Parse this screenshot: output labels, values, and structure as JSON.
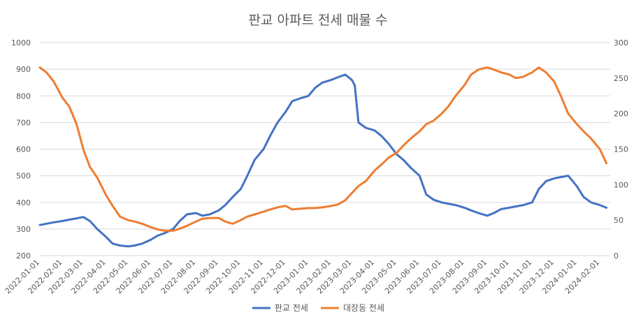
{
  "chart_data": {
    "type": "line",
    "title": "판교 아파트 전세 매물 수",
    "y_left": {
      "min": 200,
      "max": 1000,
      "ticks": [
        200,
        300,
        400,
        500,
        600,
        700,
        800,
        900,
        1000
      ]
    },
    "y_right": {
      "min": 0,
      "max": 300,
      "ticks": [
        0,
        50,
        100,
        150,
        200,
        250,
        300
      ]
    },
    "x_ticks": [
      "2022-01-01",
      "2022-02-01",
      "2022-03-01",
      "2022-04-01",
      "2022-05-01",
      "2022-06-01",
      "2022-07-01",
      "2022-08-01",
      "2022-09-01",
      "2022-10-01",
      "2022-11-01",
      "2022-12-01",
      "2023-01-01",
      "2023-02-01",
      "2023-03-01",
      "2023-04-01",
      "2023-05-01",
      "2023-06-01",
      "2023-07-01",
      "2023-08-01",
      "2023-09-01",
      "2023-10-01",
      "2023-11-01",
      "2023-12-01",
      "2024-01-01",
      "2024-02-01"
    ],
    "grid": true,
    "legend_position": "bottom",
    "series": [
      {
        "name": "판교 전세",
        "axis": "left",
        "color": "#4472C4",
        "x": [
          "2022-01-01",
          "2022-01-10",
          "2022-01-20",
          "2022-02-01",
          "2022-02-10",
          "2022-02-20",
          "2022-03-01",
          "2022-03-10",
          "2022-03-20",
          "2022-04-01",
          "2022-04-10",
          "2022-04-20",
          "2022-05-01",
          "2022-05-10",
          "2022-05-20",
          "2022-06-01",
          "2022-06-10",
          "2022-06-20",
          "2022-07-01",
          "2022-07-10",
          "2022-07-20",
          "2022-08-01",
          "2022-08-10",
          "2022-08-20",
          "2022-09-01",
          "2022-09-10",
          "2022-09-20",
          "2022-10-01",
          "2022-10-10",
          "2022-10-20",
          "2022-11-01",
          "2022-11-10",
          "2022-11-20",
          "2022-12-01",
          "2022-12-10",
          "2022-12-20",
          "2023-01-01",
          "2023-01-10",
          "2023-01-20",
          "2023-02-01",
          "2023-02-10",
          "2023-02-20",
          "2023-03-01",
          "2023-03-05",
          "2023-03-10",
          "2023-03-20",
          "2023-04-01",
          "2023-04-10",
          "2023-04-20",
          "2023-05-01",
          "2023-05-10",
          "2023-05-20",
          "2023-06-01",
          "2023-06-10",
          "2023-06-20",
          "2023-07-01",
          "2023-07-10",
          "2023-07-20",
          "2023-08-01",
          "2023-08-10",
          "2023-08-20",
          "2023-09-01",
          "2023-09-10",
          "2023-09-20",
          "2023-10-01",
          "2023-10-10",
          "2023-10-20",
          "2023-11-01",
          "2023-11-10",
          "2023-11-20",
          "2023-12-01",
          "2023-12-10",
          "2023-12-20",
          "2024-01-01",
          "2024-01-10",
          "2024-01-20",
          "2024-02-01",
          "2024-02-10"
        ],
        "values": [
          315,
          320,
          325,
          330,
          335,
          340,
          345,
          330,
          300,
          270,
          245,
          238,
          235,
          238,
          245,
          260,
          275,
          285,
          300,
          330,
          355,
          360,
          350,
          355,
          370,
          390,
          420,
          450,
          500,
          560,
          600,
          650,
          700,
          740,
          780,
          790,
          800,
          830,
          850,
          860,
          870,
          880,
          860,
          840,
          700,
          680,
          670,
          650,
          620,
          580,
          560,
          530,
          500,
          430,
          410,
          400,
          395,
          390,
          380,
          370,
          360,
          350,
          360,
          375,
          380,
          385,
          390,
          400,
          450,
          480,
          490,
          495,
          500,
          460,
          420,
          400,
          390,
          380
        ]
      },
      {
        "name": "대장동 전세",
        "axis": "right",
        "color": "#ED7D31",
        "x": [
          "2022-01-01",
          "2022-01-10",
          "2022-01-20",
          "2022-02-01",
          "2022-02-10",
          "2022-02-20",
          "2022-03-01",
          "2022-03-10",
          "2022-03-20",
          "2022-04-01",
          "2022-04-10",
          "2022-04-20",
          "2022-05-01",
          "2022-05-10",
          "2022-05-20",
          "2022-06-01",
          "2022-06-10",
          "2022-06-20",
          "2022-07-01",
          "2022-07-10",
          "2022-07-20",
          "2022-08-01",
          "2022-08-10",
          "2022-08-20",
          "2022-09-01",
          "2022-09-10",
          "2022-09-20",
          "2022-10-01",
          "2022-10-10",
          "2022-10-20",
          "2022-11-01",
          "2022-11-10",
          "2022-11-20",
          "2022-12-01",
          "2022-12-10",
          "2022-12-20",
          "2023-01-01",
          "2023-01-10",
          "2023-01-20",
          "2023-02-01",
          "2023-02-10",
          "2023-02-20",
          "2023-03-01",
          "2023-03-10",
          "2023-03-20",
          "2023-04-01",
          "2023-04-10",
          "2023-04-20",
          "2023-05-01",
          "2023-05-10",
          "2023-05-20",
          "2023-06-01",
          "2023-06-10",
          "2023-06-20",
          "2023-07-01",
          "2023-07-10",
          "2023-07-20",
          "2023-08-01",
          "2023-08-10",
          "2023-08-20",
          "2023-09-01",
          "2023-09-10",
          "2023-09-20",
          "2023-10-01",
          "2023-10-10",
          "2023-10-20",
          "2023-11-01",
          "2023-11-10",
          "2023-11-20",
          "2023-12-01",
          "2023-12-10",
          "2023-12-20",
          "2024-01-01",
          "2024-01-10",
          "2024-01-20",
          "2024-02-01",
          "2024-02-10"
        ],
        "values": [
          265,
          258,
          245,
          222,
          210,
          185,
          150,
          125,
          110,
          85,
          70,
          55,
          50,
          48,
          45,
          40,
          37,
          35,
          35,
          38,
          42,
          48,
          52,
          53,
          53,
          48,
          45,
          50,
          55,
          58,
          62,
          65,
          68,
          70,
          65,
          66,
          67,
          67,
          68,
          70,
          72,
          78,
          88,
          98,
          105,
          120,
          128,
          138,
          145,
          155,
          165,
          175,
          185,
          190,
          200,
          210,
          225,
          240,
          255,
          262,
          265,
          262,
          258,
          255,
          250,
          252,
          258,
          265,
          258,
          245,
          225,
          200,
          185,
          175,
          165,
          150,
          130
        ]
      }
    ]
  }
}
